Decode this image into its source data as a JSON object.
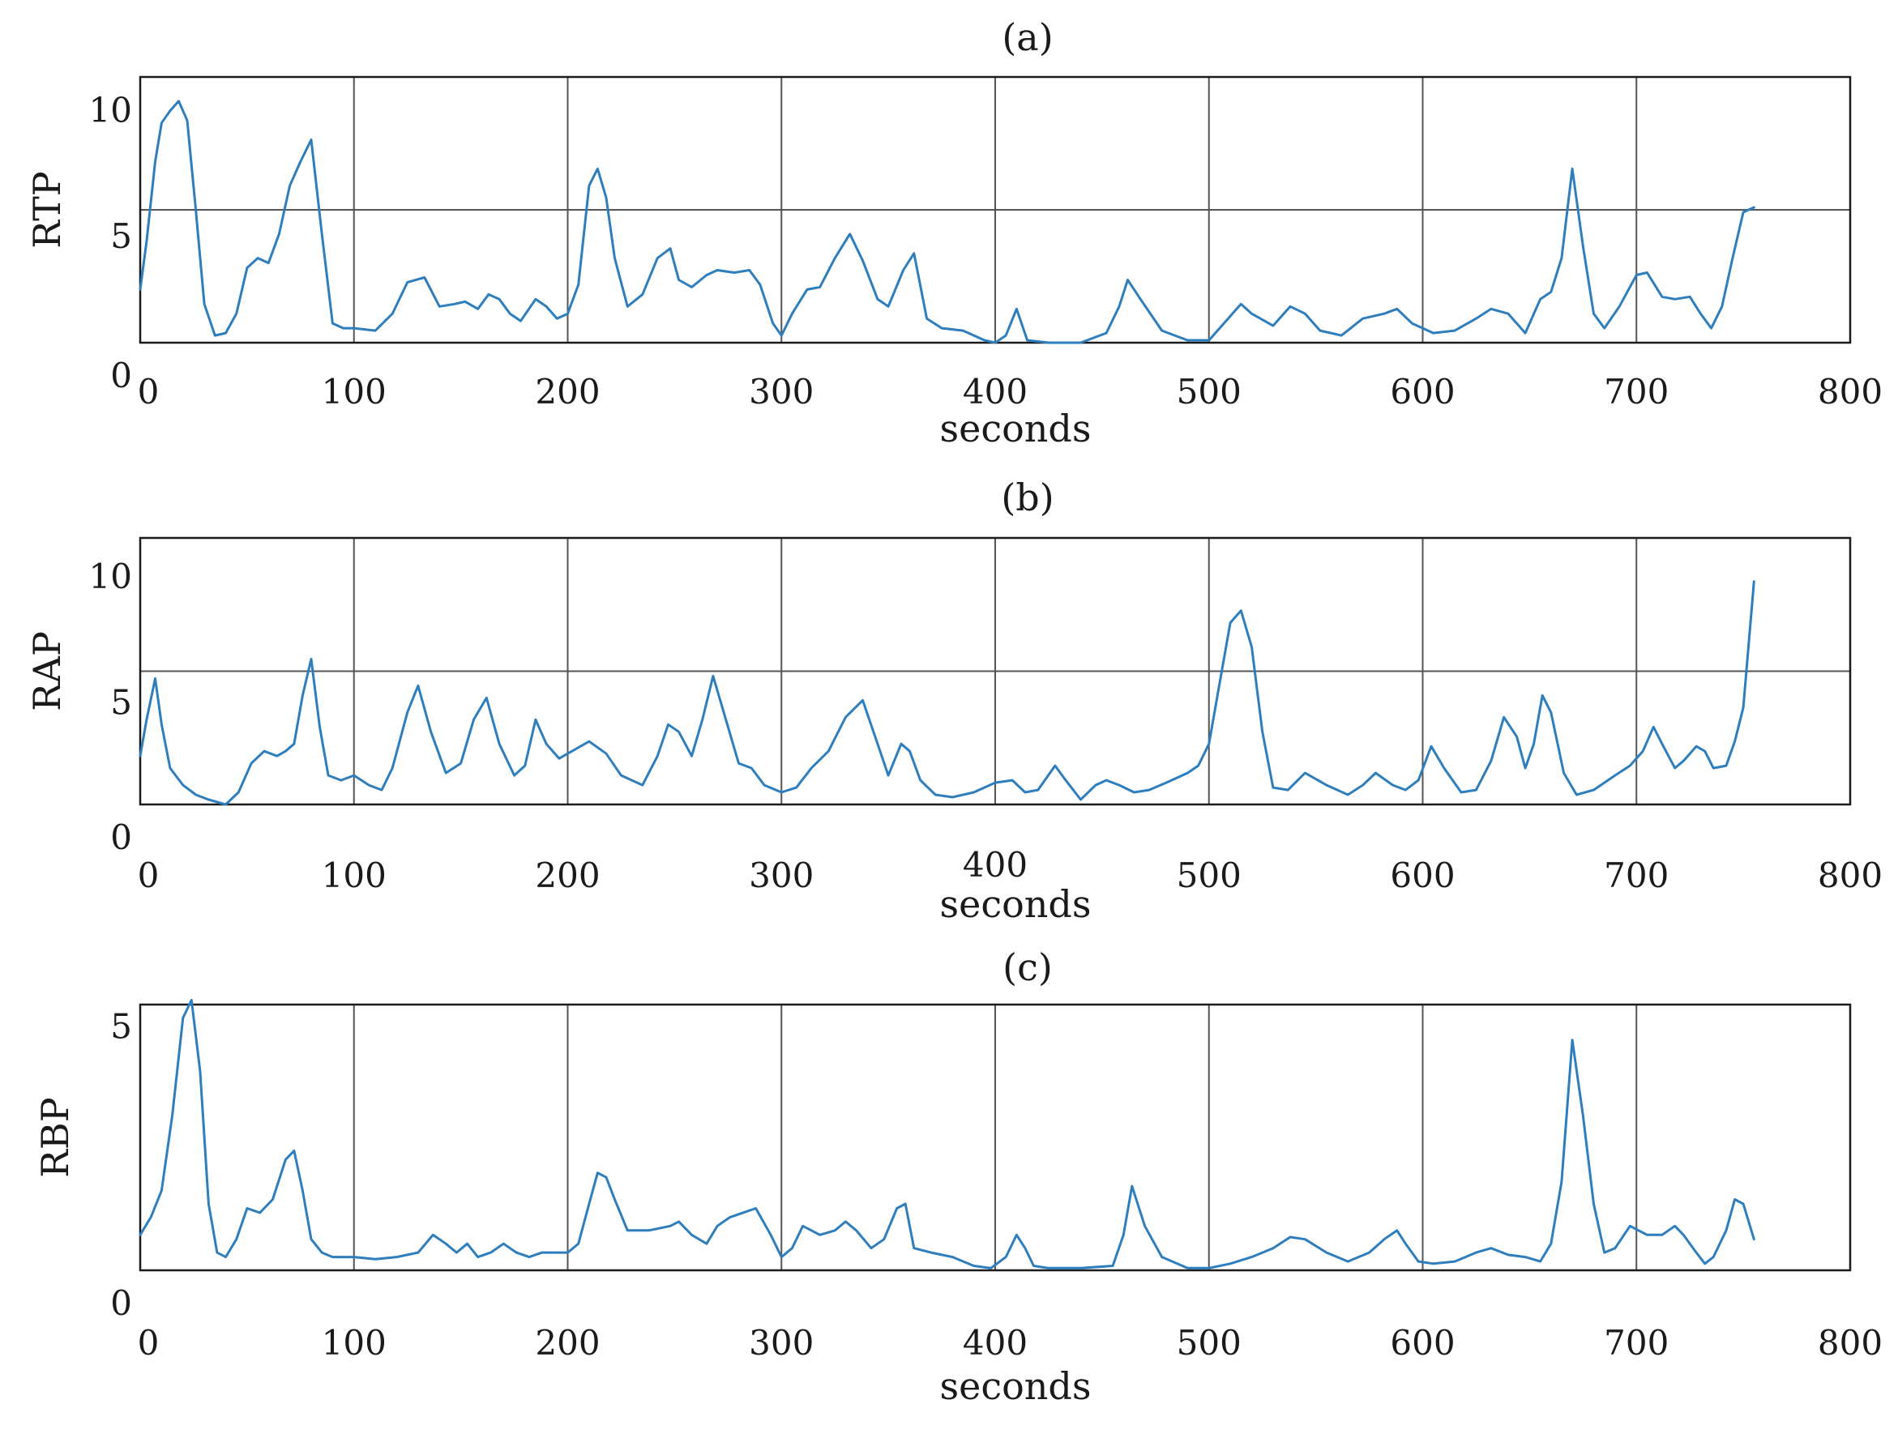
{
  "colors": {
    "series": "#2e7ebd"
  },
  "chart_data": [
    {
      "type": "line",
      "title": "(a)",
      "xlabel": "seconds",
      "ylabel": "RTP",
      "xlim": [
        0,
        800
      ],
      "ylim": [
        0,
        11
      ],
      "xticks": [
        0,
        100,
        200,
        300,
        400,
        500,
        600,
        700,
        800
      ],
      "yticks": [
        0,
        5,
        10
      ],
      "ytick_positions": [
        0,
        4.4,
        9.6
      ],
      "hline": 5.5,
      "grid": "vertical",
      "series": [
        {
          "x": [
            0,
            3,
            7,
            10,
            14,
            18,
            22,
            26,
            30,
            35,
            40,
            45,
            50,
            55,
            60,
            65,
            70,
            75,
            80,
            85,
            90,
            95,
            100,
            110,
            118,
            125,
            133,
            140,
            147,
            152,
            158,
            163,
            168,
            173,
            178,
            185,
            190,
            195,
            200,
            205,
            210,
            214,
            218,
            222,
            228,
            235,
            242,
            248,
            252,
            258,
            265,
            270,
            278,
            285,
            290,
            296,
            300,
            305,
            312,
            318,
            325,
            332,
            338,
            345,
            350,
            357,
            362,
            368,
            375,
            385,
            395,
            400,
            405,
            410,
            415,
            425,
            440,
            452,
            458,
            462,
            468,
            478,
            490,
            500,
            508,
            515,
            520,
            530,
            538,
            545,
            552,
            562,
            572,
            582,
            588,
            595,
            605,
            615,
            625,
            632,
            640,
            648,
            655,
            660,
            665,
            670,
            675,
            680,
            685,
            692,
            700,
            705,
            712,
            718,
            725,
            730,
            735,
            740,
            745,
            750,
            755
          ],
          "y": [
            2.2,
            4.2,
            7.5,
            9.1,
            9.6,
            10.0,
            9.2,
            5.5,
            1.6,
            0.3,
            0.4,
            1.2,
            3.1,
            3.5,
            3.3,
            4.5,
            6.5,
            7.5,
            8.4,
            4.5,
            0.8,
            0.6,
            0.6,
            0.5,
            1.2,
            2.5,
            2.7,
            1.5,
            1.6,
            1.7,
            1.4,
            2.0,
            1.8,
            1.2,
            0.9,
            1.8,
            1.5,
            1.0,
            1.2,
            2.4,
            6.5,
            7.2,
            6.0,
            3.5,
            1.5,
            2.0,
            3.5,
            3.9,
            2.6,
            2.3,
            2.8,
            3.0,
            2.9,
            3.0,
            2.4,
            0.8,
            0.3,
            1.2,
            2.2,
            2.3,
            3.5,
            4.5,
            3.4,
            1.8,
            1.5,
            3.0,
            3.7,
            1.0,
            0.6,
            0.5,
            0.1,
            0.0,
            0.3,
            1.4,
            0.1,
            0.0,
            0.0,
            0.4,
            1.5,
            2.6,
            1.8,
            0.5,
            0.1,
            0.1,
            0.9,
            1.6,
            1.2,
            0.7,
            1.5,
            1.2,
            0.5,
            0.3,
            1.0,
            1.2,
            1.4,
            0.8,
            0.4,
            0.5,
            1.0,
            1.4,
            1.2,
            0.4,
            1.8,
            2.1,
            3.5,
            7.2,
            4.0,
            1.2,
            0.6,
            1.5,
            2.8,
            2.9,
            1.9,
            1.8,
            1.9,
            1.2,
            0.6,
            1.5,
            3.5,
            5.4,
            5.6
          ]
        }
      ]
    },
    {
      "type": "line",
      "title": "(b)",
      "xlabel": "seconds",
      "ylabel": "RAP",
      "xlim": [
        0,
        800
      ],
      "ylim": [
        0,
        11
      ],
      "xticks": [
        0,
        100,
        200,
        300,
        400,
        500,
        600,
        700,
        800
      ],
      "yticks": [
        0,
        5,
        10
      ],
      "ytick_positions": [
        0,
        4.2,
        9.4
      ],
      "hline": 5.5,
      "grid": "vertical",
      "series": [
        {
          "x": [
            0,
            3,
            7,
            10,
            14,
            20,
            26,
            32,
            40,
            46,
            52,
            58,
            64,
            68,
            72,
            76,
            80,
            84,
            88,
            94,
            100,
            107,
            113,
            118,
            125,
            130,
            136,
            143,
            150,
            156,
            162,
            168,
            175,
            180,
            185,
            190,
            196,
            202,
            210,
            218,
            225,
            235,
            242,
            247,
            252,
            258,
            263,
            268,
            274,
            280,
            286,
            292,
            300,
            307,
            314,
            322,
            330,
            338,
            345,
            350,
            356,
            360,
            365,
            372,
            380,
            390,
            400,
            408,
            414,
            420,
            428,
            433,
            440,
            447,
            452,
            458,
            465,
            472,
            480,
            490,
            495,
            500,
            505,
            510,
            515,
            520,
            525,
            530,
            537,
            545,
            555,
            565,
            572,
            578,
            586,
            592,
            598,
            604,
            610,
            618,
            625,
            632,
            638,
            644,
            648,
            652,
            656,
            660,
            666,
            672,
            680,
            690,
            697,
            703,
            708,
            712,
            718,
            722,
            728,
            732,
            736,
            742,
            746,
            750,
            755
          ],
          "y": [
            2.0,
            3.5,
            5.2,
            3.3,
            1.5,
            0.8,
            0.4,
            0.2,
            0.0,
            0.5,
            1.7,
            2.2,
            2.0,
            2.2,
            2.5,
            4.5,
            6.0,
            3.2,
            1.2,
            1.0,
            1.2,
            0.8,
            0.6,
            1.5,
            3.8,
            4.9,
            3.0,
            1.3,
            1.7,
            3.5,
            4.4,
            2.5,
            1.2,
            1.6,
            3.5,
            2.5,
            1.9,
            2.2,
            2.6,
            2.1,
            1.2,
            0.8,
            2.0,
            3.3,
            3.0,
            2.0,
            3.5,
            5.3,
            3.5,
            1.7,
            1.5,
            0.8,
            0.5,
            0.7,
            1.5,
            2.2,
            3.6,
            4.3,
            2.5,
            1.2,
            2.5,
            2.2,
            1.0,
            0.4,
            0.3,
            0.5,
            0.9,
            1.0,
            0.5,
            0.6,
            1.6,
            1.0,
            0.2,
            0.8,
            1.0,
            0.8,
            0.5,
            0.6,
            0.9,
            1.3,
            1.6,
            2.5,
            5.0,
            7.5,
            8.0,
            6.5,
            3.0,
            0.7,
            0.6,
            1.3,
            0.8,
            0.4,
            0.8,
            1.3,
            0.8,
            0.6,
            1.0,
            2.4,
            1.5,
            0.5,
            0.6,
            1.8,
            3.6,
            2.8,
            1.5,
            2.5,
            4.5,
            3.8,
            1.3,
            0.4,
            0.6,
            1.2,
            1.6,
            2.2,
            3.2,
            2.5,
            1.5,
            1.8,
            2.4,
            2.2,
            1.5,
            1.6,
            2.6,
            4.0,
            9.2
          ]
        }
      ]
    },
    {
      "type": "line",
      "title": "(c)",
      "xlabel": "seconds",
      "ylabel": "RBP",
      "xlim": [
        0,
        800
      ],
      "ylim": [
        0,
        6
      ],
      "xticks": [
        0,
        100,
        200,
        300,
        400,
        500,
        600,
        700,
        800
      ],
      "yticks": [
        0,
        5
      ],
      "ytick_positions": [
        0,
        5.5
      ],
      "grid": "vertical",
      "series": [
        {
          "x": [
            0,
            5,
            10,
            15,
            20,
            24,
            28,
            32,
            36,
            40,
            45,
            50,
            56,
            62,
            68,
            72,
            76,
            80,
            85,
            90,
            95,
            100,
            110,
            120,
            130,
            137,
            143,
            148,
            153,
            158,
            164,
            170,
            176,
            182,
            188,
            195,
            200,
            205,
            210,
            214,
            218,
            222,
            228,
            238,
            248,
            252,
            258,
            265,
            270,
            276,
            282,
            288,
            295,
            300,
            305,
            310,
            318,
            325,
            330,
            335,
            342,
            348,
            354,
            358,
            362,
            370,
            380,
            390,
            398,
            405,
            410,
            414,
            418,
            425,
            440,
            455,
            460,
            464,
            470,
            478,
            490,
            500,
            510,
            520,
            530,
            538,
            545,
            555,
            565,
            575,
            582,
            588,
            592,
            598,
            605,
            615,
            625,
            632,
            640,
            648,
            655,
            660,
            665,
            670,
            675,
            680,
            685,
            690,
            697,
            705,
            712,
            718,
            722,
            728,
            732,
            736,
            742,
            746,
            750,
            755
          ],
          "y": [
            0.8,
            1.2,
            1.8,
            3.5,
            5.7,
            6.1,
            4.5,
            1.5,
            0.4,
            0.3,
            0.7,
            1.4,
            1.3,
            1.6,
            2.5,
            2.7,
            1.8,
            0.7,
            0.4,
            0.3,
            0.3,
            0.3,
            0.25,
            0.3,
            0.4,
            0.8,
            0.6,
            0.4,
            0.6,
            0.3,
            0.4,
            0.6,
            0.4,
            0.3,
            0.4,
            0.4,
            0.4,
            0.6,
            1.5,
            2.2,
            2.1,
            1.6,
            0.9,
            0.9,
            1.0,
            1.1,
            0.8,
            0.6,
            1.0,
            1.2,
            1.3,
            1.4,
            0.8,
            0.3,
            0.5,
            1.0,
            0.8,
            0.9,
            1.1,
            0.9,
            0.5,
            0.7,
            1.4,
            1.5,
            0.5,
            0.4,
            0.3,
            0.1,
            0.05,
            0.3,
            0.8,
            0.5,
            0.1,
            0.05,
            0.05,
            0.1,
            0.8,
            1.9,
            1.0,
            0.3,
            0.05,
            0.05,
            0.15,
            0.3,
            0.5,
            0.75,
            0.7,
            0.4,
            0.2,
            0.4,
            0.7,
            0.9,
            0.6,
            0.2,
            0.15,
            0.2,
            0.4,
            0.5,
            0.35,
            0.3,
            0.2,
            0.6,
            2.0,
            5.2,
            3.5,
            1.5,
            0.4,
            0.5,
            1.0,
            0.8,
            0.8,
            1.0,
            0.8,
            0.4,
            0.15,
            0.3,
            0.9,
            1.6,
            1.5,
            0.7
          ]
        }
      ]
    }
  ]
}
